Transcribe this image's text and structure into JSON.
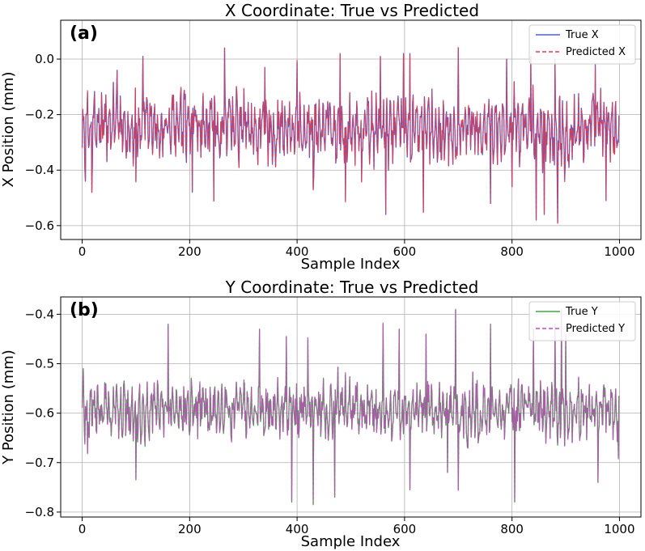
{
  "chart_data": [
    {
      "type": "line",
      "panel_label": "(a)",
      "title": "X Coordinate: True vs Predicted",
      "xlabel": "Sample Index",
      "ylabel": "X Position (mm)",
      "xlim": [
        -40,
        1040
      ],
      "ylim": [
        -0.65,
        0.14
      ],
      "xticks": [
        0,
        200,
        400,
        600,
        800,
        1000
      ],
      "yticks": [
        -0.6,
        -0.4,
        -0.2,
        0.0
      ],
      "ytick_labels": [
        "−0.6",
        "−0.4",
        "−0.2",
        "0.0"
      ],
      "grid": true,
      "legend_position": "top-right",
      "series": [
        {
          "name": "True X",
          "color": "#4a5ee8",
          "style": "solid"
        },
        {
          "name": "Predicted X",
          "color": "#ee3b3b",
          "style": "dashed"
        }
      ],
      "mean": -0.25,
      "amplitude": 0.13,
      "min": -0.59,
      "max": 0.04,
      "anchors": [
        {
          "x": 2,
          "y": -0.22
        },
        {
          "x": 6,
          "y": -0.44
        },
        {
          "x": 10,
          "y": -0.12
        },
        {
          "x": 18,
          "y": -0.48
        },
        {
          "x": 65,
          "y": -0.04
        },
        {
          "x": 100,
          "y": -0.44
        },
        {
          "x": 113,
          "y": 0.01
        },
        {
          "x": 205,
          "y": -0.48
        },
        {
          "x": 245,
          "y": -0.51
        },
        {
          "x": 265,
          "y": 0.04
        },
        {
          "x": 340,
          "y": -0.03
        },
        {
          "x": 400,
          "y": -0.01
        },
        {
          "x": 430,
          "y": -0.47
        },
        {
          "x": 480,
          "y": 0.02
        },
        {
          "x": 490,
          "y": -0.51
        },
        {
          "x": 520,
          "y": -0.44
        },
        {
          "x": 555,
          "y": 0.01
        },
        {
          "x": 565,
          "y": -0.56
        },
        {
          "x": 598,
          "y": 0.02
        },
        {
          "x": 610,
          "y": 0.02
        },
        {
          "x": 635,
          "y": -0.55
        },
        {
          "x": 700,
          "y": 0.04
        },
        {
          "x": 760,
          "y": -0.52
        },
        {
          "x": 790,
          "y": 0.0
        },
        {
          "x": 800,
          "y": -0.46
        },
        {
          "x": 835,
          "y": 0.01
        },
        {
          "x": 845,
          "y": -0.58
        },
        {
          "x": 860,
          "y": -0.56
        },
        {
          "x": 880,
          "y": 0.0
        },
        {
          "x": 885,
          "y": -0.59
        },
        {
          "x": 955,
          "y": -0.02
        },
        {
          "x": 975,
          "y": -0.51
        },
        {
          "x": 998,
          "y": -0.3
        }
      ]
    },
    {
      "type": "line",
      "panel_label": "(b)",
      "title": "Y Coordinate: True vs Predicted",
      "xlabel": "Sample Index",
      "ylabel": "Y Position (mm)",
      "xlim": [
        -40,
        1040
      ],
      "ylim": [
        -0.81,
        -0.365
      ],
      "xticks": [
        0,
        200,
        400,
        600,
        800,
        1000
      ],
      "yticks": [
        -0.8,
        -0.7,
        -0.6,
        -0.5,
        -0.4
      ],
      "ytick_labels": [
        "−0.8",
        "−0.7",
        "−0.6",
        "−0.5",
        "−0.4"
      ],
      "grid": true,
      "legend_position": "top-right",
      "series": [
        {
          "name": "True Y",
          "color": "#3da83d",
          "style": "solid"
        },
        {
          "name": "Predicted Y",
          "color": "#cc44cc",
          "style": "dashed"
        }
      ],
      "mean": -0.595,
      "amplitude": 0.06,
      "min": -0.785,
      "max": -0.39,
      "anchors": [
        {
          "x": 2,
          "y": -0.51
        },
        {
          "x": 10,
          "y": -0.68
        },
        {
          "x": 100,
          "y": -0.735
        },
        {
          "x": 160,
          "y": -0.42
        },
        {
          "x": 330,
          "y": -0.43
        },
        {
          "x": 380,
          "y": -0.445
        },
        {
          "x": 390,
          "y": -0.78
        },
        {
          "x": 420,
          "y": -0.45
        },
        {
          "x": 430,
          "y": -0.785
        },
        {
          "x": 470,
          "y": -0.77
        },
        {
          "x": 560,
          "y": -0.42
        },
        {
          "x": 590,
          "y": -0.43
        },
        {
          "x": 610,
          "y": -0.755
        },
        {
          "x": 640,
          "y": -0.44
        },
        {
          "x": 680,
          "y": -0.72
        },
        {
          "x": 695,
          "y": -0.39
        },
        {
          "x": 700,
          "y": -0.755
        },
        {
          "x": 760,
          "y": -0.42
        },
        {
          "x": 805,
          "y": -0.78
        },
        {
          "x": 840,
          "y": -0.43
        },
        {
          "x": 880,
          "y": -0.42
        },
        {
          "x": 892,
          "y": -0.39
        },
        {
          "x": 900,
          "y": -0.44
        },
        {
          "x": 960,
          "y": -0.74
        },
        {
          "x": 998,
          "y": -0.69
        }
      ]
    }
  ]
}
